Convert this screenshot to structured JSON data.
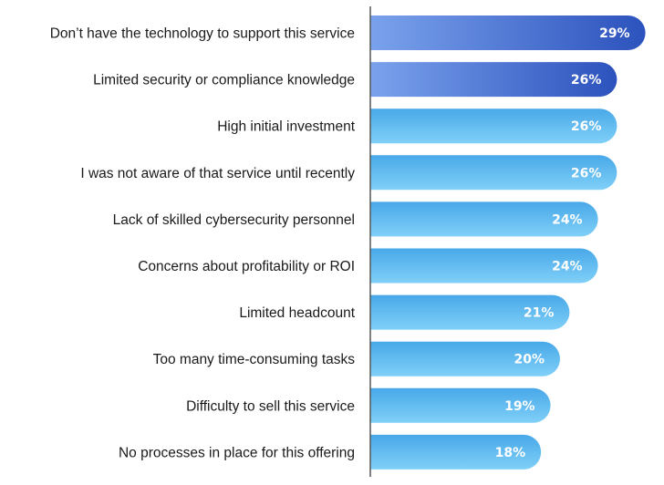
{
  "chart_data": {
    "type": "bar",
    "orientation": "horizontal",
    "title": "",
    "xlabel": "",
    "ylabel": "",
    "value_suffix": "%",
    "xlim": [
      0,
      30
    ],
    "grid": false,
    "legend": "none",
    "categories": [
      "Don’t have the technology to support this service",
      "Limited security or compliance knowledge",
      "High initial investment",
      "I was not aware of that service until recently",
      "Lack of skilled cybersecurity personnel",
      "Concerns about profitability or ROI",
      "Limited headcount",
      "Too many time-consuming tasks",
      "Difficulty to sell this service",
      "No processes in place for this offering"
    ],
    "values": [
      29,
      26,
      26,
      26,
      24,
      24,
      21,
      20,
      19,
      18
    ],
    "value_labels": [
      "29%",
      "26%",
      "26%",
      "26%",
      "24%",
      "24%",
      "21%",
      "20%",
      "19%",
      "18%"
    ],
    "highlighted": [
      true,
      true,
      false,
      false,
      false,
      false,
      false,
      false,
      false,
      false
    ]
  },
  "colors": {
    "highlight_start": "#7aa2ec",
    "highlight_end": "#2c52bd",
    "normal_top": "#48a8e8",
    "normal_bottom": "#80d0f8",
    "axis": "#555555",
    "label_text": "#1a1a1a",
    "value_text": "#ffffff"
  }
}
